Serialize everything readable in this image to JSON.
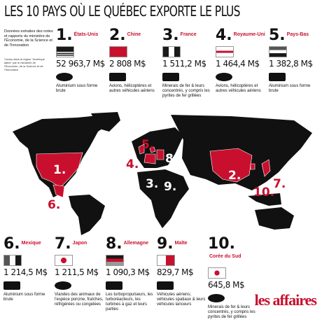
{
  "header": {
    "title": "LES 10 PAYS OÙ LE QUÉBEC EXPORTE LE PLUS",
    "intro": "Données extraites des notes et rapports du ministère de l'Économie, de la Science et de l'Innovation",
    "footnote": "*Inclus dans la région \"Amérique latine\" par le ministère de l'Économie, de la Science et de l'Innovation"
  },
  "countries": [
    {
      "rank": "1.",
      "name": "États-Unis",
      "value": "52 963,7 M$",
      "product": "Aluminium sous forme brute"
    },
    {
      "rank": "2.",
      "name": "Chine",
      "value": "2 808 M$",
      "product": "Avions, hélicoptères et autres véhicules aériens"
    },
    {
      "rank": "3.",
      "name": "France",
      "value": "1 511,2 M$",
      "product": "Minerais de fer & leurs concentrés, y compris les pyrites de fer grillées"
    },
    {
      "rank": "4.",
      "name": "Royaume-Uni",
      "value": "1 464,4 M$",
      "product": "Avions, hélicoptères et autres véhicules aériens"
    },
    {
      "rank": "5.",
      "name": "Pays-Bas",
      "value": "1 382,8 M$",
      "product": "Aluminium sous forme brute"
    },
    {
      "rank": "6.",
      "name": "Mexique",
      "value": "1 214,5 M$",
      "product": "Aluminium sous forme brute"
    },
    {
      "rank": "7.",
      "name": "Japon",
      "value": "1 211,5 M$",
      "product": "Viandes des animaux de l'espèce porcine, fraîches, réfrigérées ou congelées"
    },
    {
      "rank": "8.",
      "name": "Allemagne",
      "value": "1 090,3 M$",
      "product": "Les turbopropulseurs, les turboréacteurs, les turbines à gaz et leurs parties"
    },
    {
      "rank": "9.",
      "name": "Malte",
      "value": "829,7 M$",
      "product": "Véhicules aériens; véhicules spatiaux & leurs véhicules lanceurs"
    },
    {
      "rank": "10.",
      "name": "Corée du Sud",
      "value": "645,8 M$",
      "product": "Minerais de fer & leurs concentrés, y compris les pyrites de fer grillées"
    }
  ],
  "logo": "les affaires"
}
